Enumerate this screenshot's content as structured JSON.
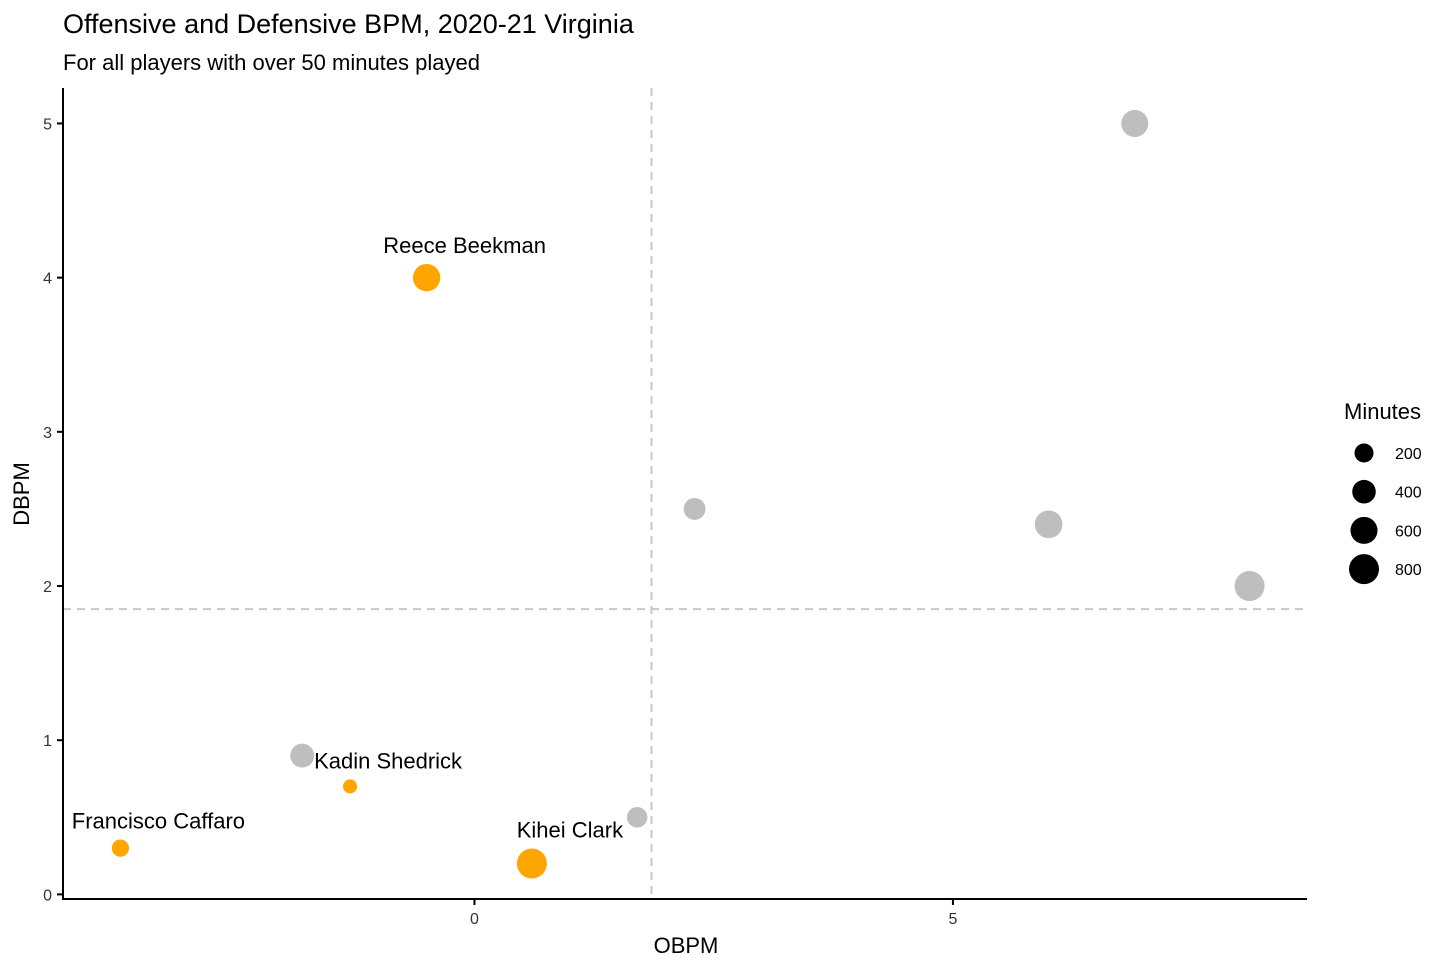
{
  "chart_data": {
    "type": "scatter",
    "title": "Offensive and Defensive BPM, 2020-21 Virginia",
    "subtitle": "For all players with over 50 minutes played",
    "xlabel": "OBPM",
    "ylabel": "DBPM",
    "xlim": [
      -4.3,
      8.7
    ],
    "ylim": [
      -0.03,
      5.23
    ],
    "x_ticks": [
      0,
      5
    ],
    "y_ticks": [
      0,
      1,
      2,
      3,
      4,
      5
    ],
    "grid": false,
    "reference_lines": {
      "x": 1.85,
      "y": 1.85
    },
    "colors": {
      "highlight": "#FFA500",
      "other": "#BEBEBE",
      "reference": "#C8C8C8",
      "axis": "#000000"
    },
    "size_legend": {
      "title": "Minutes",
      "placement": "right",
      "entries": [
        {
          "label": "200",
          "value": 200
        },
        {
          "label": "400",
          "value": 400
        },
        {
          "label": "600",
          "value": 600
        },
        {
          "label": "800",
          "value": 800
        }
      ]
    },
    "points": [
      {
        "x": 6.9,
        "y": 5.0,
        "minutes": 600,
        "group": "other",
        "label": ""
      },
      {
        "x": -0.5,
        "y": 4.0,
        "minutes": 620,
        "group": "highlight",
        "label": "Reece Beekman"
      },
      {
        "x": 2.3,
        "y": 2.5,
        "minutes": 320,
        "group": "other",
        "label": ""
      },
      {
        "x": 6.0,
        "y": 2.4,
        "minutes": 640,
        "group": "other",
        "label": ""
      },
      {
        "x": 8.1,
        "y": 2.0,
        "minutes": 800,
        "group": "other",
        "label": ""
      },
      {
        "x": -1.8,
        "y": 0.9,
        "minutes": 420,
        "group": "other",
        "label": ""
      },
      {
        "x": -1.3,
        "y": 0.7,
        "minutes": 60,
        "group": "highlight",
        "label": "Kadin Shedrick"
      },
      {
        "x": 1.7,
        "y": 0.5,
        "minutes": 260,
        "group": "other",
        "label": ""
      },
      {
        "x": -3.7,
        "y": 0.3,
        "minutes": 140,
        "group": "highlight",
        "label": "Francisco Caffaro"
      },
      {
        "x": 0.6,
        "y": 0.2,
        "minutes": 800,
        "group": "highlight",
        "label": "Kihei Clark"
      }
    ]
  }
}
